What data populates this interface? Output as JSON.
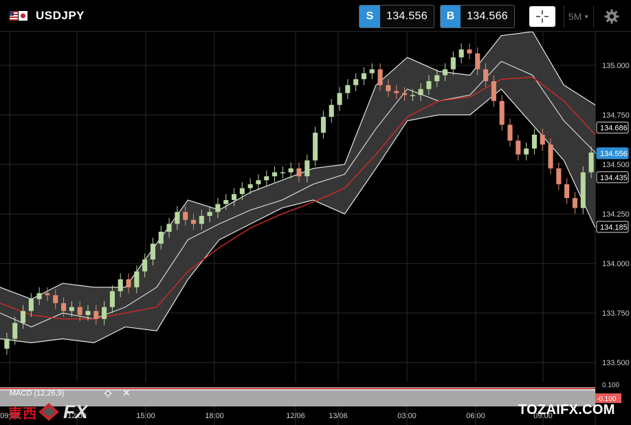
{
  "header": {
    "symbol": "USDJPY",
    "sell": {
      "tag": "S",
      "value": "134.556"
    },
    "buy": {
      "tag": "B",
      "value": "134.566"
    },
    "timeframe": "5M",
    "accent_color": "#2e8fd6"
  },
  "macd": {
    "label": "MACD (12,26,9)"
  },
  "footer": {
    "logo_kanji": "東西",
    "logo_fx": "FX",
    "watermark": "TOZAIFX.COM"
  },
  "chart_data": {
    "type": "candlestick",
    "y_axis_labels": [
      "135.000",
      "134.750",
      "134.500",
      "134.250",
      "134.000",
      "133.750",
      "133.500"
    ],
    "y_axis_values": [
      135.0,
      134.75,
      134.5,
      134.25,
      134.0,
      133.75,
      133.5
    ],
    "ylim": [
      133.4,
      135.17
    ],
    "x_axis_labels": [
      "09:00",
      "12:00",
      "15:00",
      "18:00",
      "12/06",
      "13/06",
      "03:00",
      "06:00",
      "09:00"
    ],
    "price_tags": [
      {
        "value": "134.686",
        "style": "outline"
      },
      {
        "value": "134.556",
        "style": "current"
      },
      {
        "value": "134.435",
        "style": "outline"
      },
      {
        "value": "134.185",
        "style": "outline"
      }
    ],
    "macd_axis_labels": [
      "0.100",
      "-0.100"
    ],
    "macd_current_tag": "-0.100",
    "bollinger": {
      "x": [
        0,
        10,
        20,
        30,
        40,
        50,
        60,
        70,
        80,
        90,
        100,
        110,
        120,
        130,
        140,
        150,
        160,
        170,
        180,
        190
      ],
      "upper": [
        133.88,
        133.82,
        133.9,
        133.88,
        133.88,
        134.1,
        134.32,
        134.27,
        134.36,
        134.42,
        134.48,
        134.5,
        134.9,
        135.04,
        134.97,
        134.95,
        135.15,
        135.17,
        134.9,
        134.8
      ],
      "middle": [
        133.75,
        133.68,
        133.75,
        133.72,
        133.78,
        133.88,
        134.12,
        134.2,
        134.27,
        134.32,
        134.4,
        134.45,
        134.68,
        134.88,
        134.82,
        134.85,
        135.02,
        134.95,
        134.72,
        134.56
      ],
      "lower": [
        133.62,
        133.6,
        133.62,
        133.6,
        133.68,
        133.66,
        133.92,
        134.12,
        134.2,
        134.28,
        134.32,
        134.25,
        134.48,
        134.72,
        134.75,
        134.75,
        134.88,
        134.7,
        134.52,
        134.18
      ],
      "ma": [
        133.8,
        133.74,
        133.72,
        133.72,
        133.75,
        133.78,
        133.96,
        134.08,
        134.18,
        134.25,
        134.31,
        134.38,
        134.55,
        134.74,
        134.82,
        134.84,
        134.93,
        134.94,
        134.82,
        134.65
      ]
    },
    "candles": {
      "close": [
        133.62,
        133.7,
        133.76,
        133.82,
        133.85,
        133.84,
        133.8,
        133.76,
        133.78,
        133.74,
        133.76,
        133.72,
        133.78,
        133.86,
        133.92,
        133.88,
        133.96,
        134.02,
        134.1,
        134.16,
        134.2,
        134.26,
        134.22,
        134.2,
        134.24,
        134.26,
        134.3,
        134.32,
        134.35,
        134.38,
        134.4,
        134.42,
        134.44,
        134.46,
        134.46,
        134.48,
        134.44,
        134.52,
        134.66,
        134.74,
        134.8,
        134.86,
        134.9,
        134.93,
        134.96,
        134.98,
        134.9,
        134.87,
        134.86,
        134.85,
        134.85,
        134.88,
        134.92,
        134.95,
        134.98,
        135.04,
        135.08,
        135.06,
        134.98,
        134.92,
        134.82,
        134.7,
        134.62,
        134.55,
        134.58,
        134.65,
        134.6,
        134.48,
        134.4,
        134.33,
        134.28,
        134.46,
        134.56
      ]
    }
  }
}
